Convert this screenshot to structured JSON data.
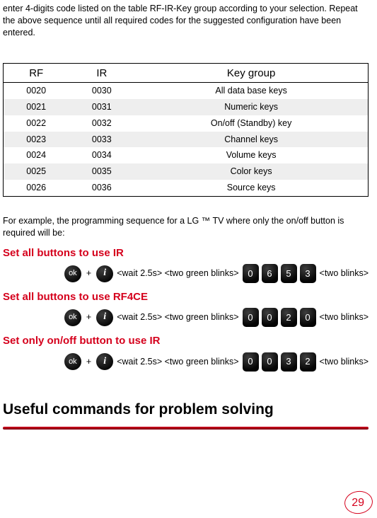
{
  "intro": "enter 4-digits code listed on the table RF-IR-Key group according to your selection. Repeat the above sequence until all required codes for the suggested configuration have been entered.",
  "table": {
    "headers": {
      "rf": "RF",
      "ir": "IR",
      "keygroup": "Key group"
    },
    "rows": [
      {
        "rf": "0020",
        "ir": "0030",
        "kg": "All data base keys"
      },
      {
        "rf": "0021",
        "ir": "0031",
        "kg": "Numeric keys"
      },
      {
        "rf": "0022",
        "ir": "0032",
        "kg": "On/off (Standby) key"
      },
      {
        "rf": "0023",
        "ir": "0033",
        "kg": "Channel keys"
      },
      {
        "rf": "0024",
        "ir": "0034",
        "kg": "Volume keys"
      },
      {
        "rf": "0025",
        "ir": "0035",
        "kg": "Color keys"
      },
      {
        "rf": "0026",
        "ir": "0036",
        "kg": "Source keys"
      }
    ]
  },
  "afterTable": "For example, the programming sequence for a LG ™  TV where only the on/off button is required will be:",
  "steps": [
    {
      "title": "Set all buttons to use IR",
      "code": [
        "0",
        "6",
        "5",
        "3"
      ]
    },
    {
      "title": "Set all buttons to use RF4CE",
      "code": [
        "0",
        "0",
        "2",
        "0"
      ]
    },
    {
      "title": "Set only on/off button to use IR",
      "code": [
        "0",
        "0",
        "3",
        "2"
      ]
    }
  ],
  "seq": {
    "ok": "ok",
    "plus": "+",
    "i": "i",
    "wait": " <wait 2.5s> <two green blinks> ",
    "end": "<two blinks>"
  },
  "sectionHead": "Useful commands for problem solving",
  "pageNum": "29"
}
